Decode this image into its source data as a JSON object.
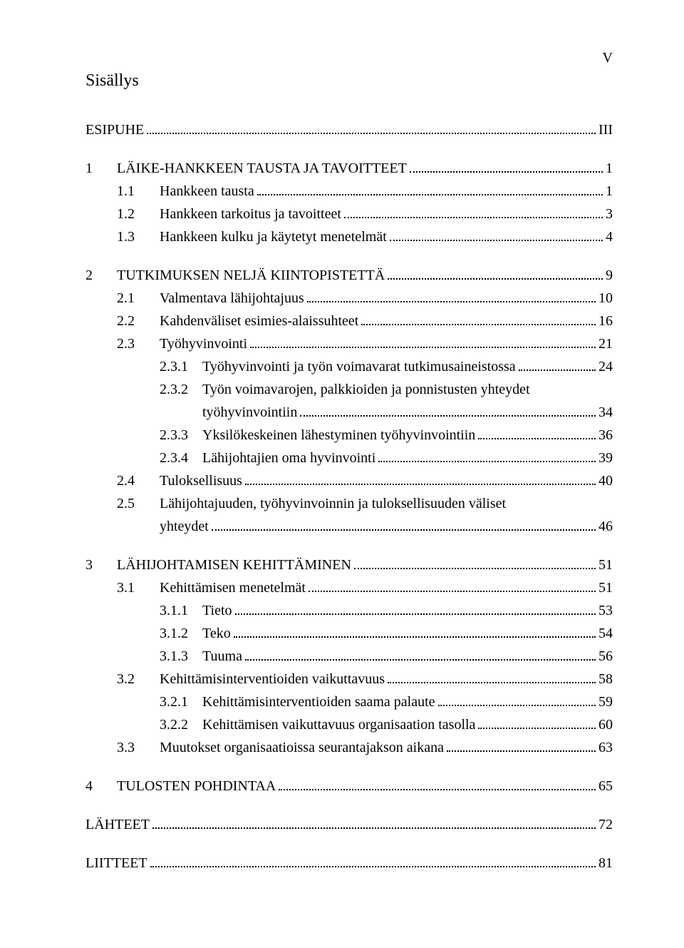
{
  "page_marker": "V",
  "toc_title": "Sisällys",
  "entries": [
    {
      "type": "line",
      "indent": 0,
      "num": "",
      "label": "ESIPUHE",
      "page": "III"
    },
    {
      "type": "gap"
    },
    {
      "type": "line",
      "indent": 0,
      "num": "1",
      "label": "LÄIKE-HANKKEEN TAUSTA JA TAVOITTEET",
      "page": "1"
    },
    {
      "type": "line",
      "indent": 1,
      "num": "1.1",
      "label": "Hankkeen tausta",
      "page": "1"
    },
    {
      "type": "line",
      "indent": 1,
      "num": "1.2",
      "label": "Hankkeen tarkoitus ja tavoitteet",
      "page": "3"
    },
    {
      "type": "line",
      "indent": 1,
      "num": "1.3",
      "label": "Hankkeen kulku ja käytetyt menetelmät",
      "page": "4"
    },
    {
      "type": "gap"
    },
    {
      "type": "line",
      "indent": 0,
      "num": "2",
      "label": "TUTKIMUKSEN NELJÄ KIINTOPISTETTÄ",
      "page": "9"
    },
    {
      "type": "line",
      "indent": 1,
      "num": "2.1",
      "label": "Valmentava lähijohtajuus",
      "page": "10"
    },
    {
      "type": "line",
      "indent": 1,
      "num": "2.2",
      "label": "Kahdenväliset esimies-alaissuhteet",
      "page": "16"
    },
    {
      "type": "line",
      "indent": 1,
      "num": "2.3",
      "label": "Työhyvinvointi",
      "page": "21"
    },
    {
      "type": "line",
      "indent": 2,
      "num": "2.3.1",
      "label": "Työhyvinvointi ja työn voimavarat tutkimusaineistossa",
      "page": "24"
    },
    {
      "type": "line2",
      "indent": 2,
      "num": "2.3.2",
      "label1": "Työn voimavarojen, palkkioiden ja ponnistusten yhteydet",
      "label2": "työhyvinvointiin",
      "page": "34"
    },
    {
      "type": "line",
      "indent": 2,
      "num": "2.3.3",
      "label": "Yksilökeskeinen lähestyminen työhyvinvointiin",
      "page": "36"
    },
    {
      "type": "line",
      "indent": 2,
      "num": "2.3.4",
      "label": "Lähijohtajien oma hyvinvointi",
      "page": "39"
    },
    {
      "type": "line",
      "indent": 1,
      "num": "2.4",
      "label": "Tuloksellisuus",
      "page": "40"
    },
    {
      "type": "line2",
      "indent": 1,
      "num": "2.5",
      "label1": "Lähijohtajuuden, työhyvinvoinnin ja tuloksellisuuden väliset",
      "label2": "yhteydet",
      "page": "46"
    },
    {
      "type": "gap"
    },
    {
      "type": "line",
      "indent": 0,
      "num": "3",
      "label": "LÄHIJOHTAMISEN KEHITTÄMINEN",
      "page": "51"
    },
    {
      "type": "line",
      "indent": 1,
      "num": "3.1",
      "label": "Kehittämisen menetelmät",
      "page": "51"
    },
    {
      "type": "line",
      "indent": 2,
      "num": "3.1.1",
      "label": "Tieto",
      "page": "53"
    },
    {
      "type": "line",
      "indent": 2,
      "num": "3.1.2",
      "label": "Teko",
      "page": "54"
    },
    {
      "type": "line",
      "indent": 2,
      "num": "3.1.3",
      "label": "Tuuma",
      "page": "56"
    },
    {
      "type": "line",
      "indent": 1,
      "num": "3.2",
      "label": "Kehittämisinterventioiden vaikuttavuus",
      "page": "58"
    },
    {
      "type": "line",
      "indent": 2,
      "num": "3.2.1",
      "label": "Kehittämisinterventioiden saama palaute",
      "page": "59"
    },
    {
      "type": "line",
      "indent": 2,
      "num": "3.2.2",
      "label": "Kehittämisen vaikuttavuus organisaation tasolla",
      "page": "60"
    },
    {
      "type": "line",
      "indent": 1,
      "num": "3.3",
      "label": "Muutokset organisaatioissa seurantajakson aikana",
      "page": "63"
    },
    {
      "type": "gap"
    },
    {
      "type": "line",
      "indent": 0,
      "num": "4",
      "label": "TULOSTEN POHDINTAA",
      "page": "65"
    },
    {
      "type": "gap"
    },
    {
      "type": "line",
      "indent": 0,
      "num": "",
      "label": "LÄHTEET",
      "page": "72"
    },
    {
      "type": "gap"
    },
    {
      "type": "line",
      "indent": 0,
      "num": "",
      "label": "LIITTEET",
      "page": "81"
    }
  ],
  "num_widths": {
    "0": "44px",
    "1": "60px",
    "2": "60px"
  },
  "indent_pads": {
    "0": "0px",
    "1": "44px",
    "2": "104px"
  },
  "wrap_pad": "164px"
}
